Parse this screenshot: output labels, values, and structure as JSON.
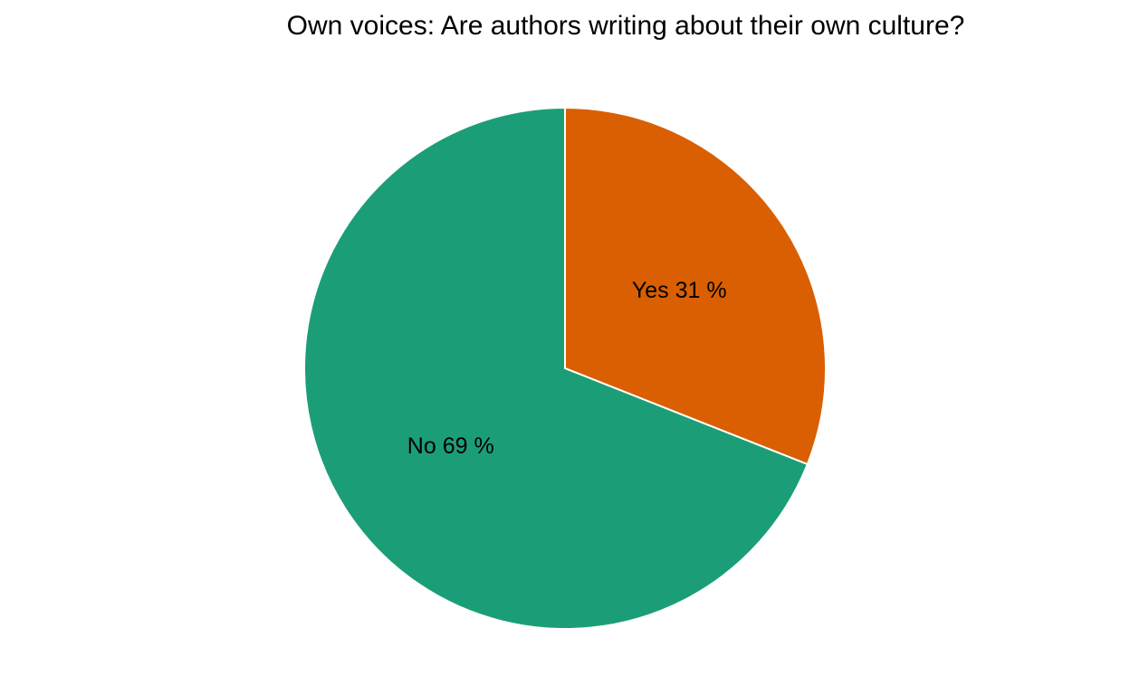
{
  "chart_data": {
    "type": "pie",
    "title": "Own voices: Are authors writing about their own culture?",
    "slices": [
      {
        "name": "Yes",
        "value": 31,
        "label": "Yes 31 %",
        "color": "#D95F02"
      },
      {
        "name": "No",
        "value": 69,
        "label": "No 69 %",
        "color": "#1B9E77"
      }
    ],
    "start": "12 o'clock",
    "direction": "clockwise",
    "slice_border_color": "#FFFFFF",
    "legend": "none"
  }
}
